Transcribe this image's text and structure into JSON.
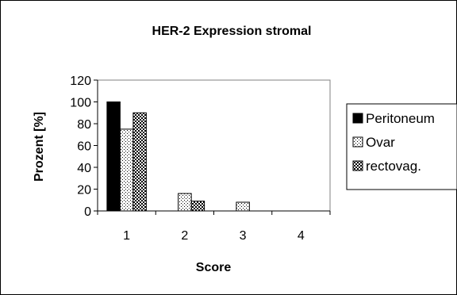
{
  "chart_data": {
    "type": "bar",
    "title": "HER-2 Expression stromal",
    "xlabel": "Score",
    "ylabel": "Prozent [%]",
    "ylim": [
      0,
      120
    ],
    "yticks": [
      0,
      20,
      40,
      60,
      80,
      100,
      120
    ],
    "categories": [
      "1",
      "2",
      "3",
      "4"
    ],
    "grid": false,
    "legend_position": "right",
    "series": [
      {
        "name": "Peritoneum",
        "values": [
          100,
          0,
          0,
          0
        ],
        "fill": "solid",
        "color": "#000000"
      },
      {
        "name": "Ovar",
        "values": [
          75,
          16,
          8,
          0
        ],
        "fill": "dots",
        "color": "#000000"
      },
      {
        "name": "rectovag.",
        "values": [
          90,
          9,
          0,
          0
        ],
        "fill": "checker",
        "color": "#000000"
      }
    ]
  }
}
